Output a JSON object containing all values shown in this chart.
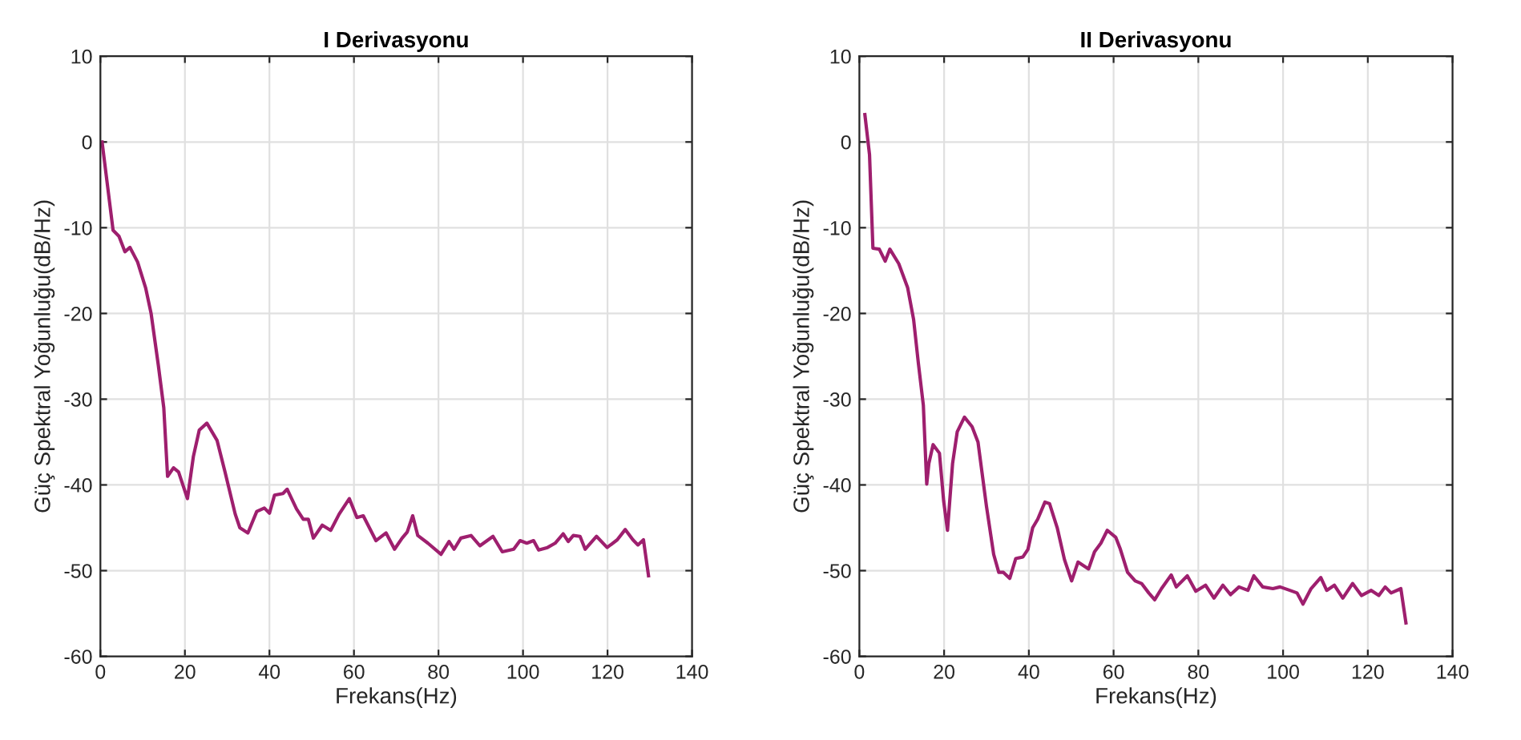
{
  "chart_data": [
    {
      "type": "line",
      "title": "I Derivasyonu",
      "xlabel": "Frekans(Hz)",
      "ylabel": "Güç Spektral Yoğunluğu(dB/Hz)",
      "xlim": [
        0,
        140
      ],
      "ylim": [
        -60,
        10
      ],
      "xticks": [
        0,
        20,
        40,
        60,
        80,
        100,
        120,
        140
      ],
      "yticks": [
        -60,
        -50,
        -40,
        -30,
        -20,
        -10,
        0,
        10
      ],
      "grid": true,
      "series": [
        {
          "color": "#9e1f6e",
          "x": [
            0.4,
            3,
            4.4,
            5.8,
            7.0,
            8.8,
            10.7,
            12,
            13.7,
            15,
            15.9,
            17.3,
            18.5,
            20.6,
            22,
            23.4,
            25.2,
            27.6,
            29.5,
            31.9,
            33,
            34.9,
            37,
            38.8,
            40,
            41.2,
            43.2,
            44.2,
            46.4,
            48,
            49.2,
            50.4,
            52.5,
            54.5,
            56.5,
            58.9,
            60.7,
            62.2,
            65.2,
            67.6,
            69.6,
            71.4,
            72.6,
            73.9,
            75.1,
            77.5,
            80.6,
            82.5,
            83.7,
            85.3,
            87.7,
            89.8,
            92.9,
            95.1,
            97.8,
            99.3,
            100.9,
            102.5,
            103.7,
            105.8,
            107.6,
            109.5,
            110.7,
            111.9,
            113.5,
            114.7,
            117.4,
            119.9,
            122.3,
            124.2,
            126,
            127.2,
            128.5,
            129.7
          ],
          "values": [
            0,
            -10.3,
            -11,
            -12.8,
            -12.3,
            -14,
            -17,
            -20,
            -26,
            -31,
            -39,
            -38,
            -38.5,
            -41.6,
            -36.7,
            -33.6,
            -32.8,
            -34.8,
            -38.5,
            -43.4,
            -45,
            -45.6,
            -43.1,
            -42.7,
            -43.3,
            -41.2,
            -41,
            -40.5,
            -42.8,
            -44,
            -44,
            -46.2,
            -44.7,
            -45.3,
            -43.4,
            -41.6,
            -43.8,
            -43.6,
            -46.5,
            -45.6,
            -47.5,
            -46.2,
            -45.5,
            -43.6,
            -45.9,
            -46.8,
            -48.1,
            -46.6,
            -47.5,
            -46.2,
            -45.9,
            -47.1,
            -46,
            -47.8,
            -47.5,
            -46.5,
            -46.8,
            -46.5,
            -47.6,
            -47.3,
            -46.8,
            -45.7,
            -46.6,
            -45.9,
            -46,
            -47.5,
            -46,
            -47.3,
            -46.4,
            -45.2,
            -46.4,
            -47,
            -46.4,
            -50.6
          ]
        }
      ]
    },
    {
      "type": "line",
      "title": "II Derivasyonu",
      "xlabel": "Frekans(Hz)",
      "ylabel": "Güç Spektral Yoğunluğu(dB/Hz)",
      "xlim": [
        0,
        140
      ],
      "ylim": [
        -60,
        10
      ],
      "xticks": [
        0,
        20,
        40,
        60,
        80,
        100,
        120,
        140
      ],
      "yticks": [
        -60,
        -50,
        -40,
        -30,
        -20,
        -10,
        0,
        10
      ],
      "grid": true,
      "series": [
        {
          "color": "#9e1f6e",
          "x": [
            1.3,
            2.4,
            3.2,
            4.7,
            6.1,
            7.2,
            9.3,
            11.4,
            12.8,
            13.9,
            15.1,
            15.9,
            16.4,
            17.4,
            18.9,
            19.9,
            20.8,
            22,
            23.1,
            24.8,
            26.6,
            28,
            30,
            31.7,
            32.9,
            34,
            35.5,
            36.9,
            38.6,
            39.8,
            40.9,
            42.1,
            43.8,
            44.9,
            46.7,
            48.4,
            50.1,
            51.6,
            54.1,
            55.5,
            57,
            58.5,
            60.5,
            61.6,
            63.3,
            65.1,
            66.6,
            68.3,
            69.7,
            71.3,
            73.6,
            74.8,
            77.4,
            79.4,
            81.7,
            83.7,
            85.8,
            87.6,
            89.6,
            91.7,
            93.1,
            95.2,
            97.6,
            99.3,
            101.6,
            103.3,
            104.7,
            106.6,
            108.9,
            110.3,
            112.1,
            114.1,
            116.4,
            118.5,
            120.8,
            122.6,
            124.1,
            125.5,
            127.8,
            129
          ],
          "values": [
            3.2,
            -1.5,
            -12.4,
            -12.5,
            -13.9,
            -12.5,
            -14.2,
            -17,
            -20.7,
            -25.7,
            -30.7,
            -39.9,
            -37.5,
            -35.3,
            -36.3,
            -41.9,
            -45.3,
            -37.5,
            -33.8,
            -32.1,
            -33.2,
            -35,
            -42.5,
            -48.1,
            -50.2,
            -50.2,
            -50.9,
            -48.6,
            -48.4,
            -47.5,
            -45,
            -44,
            -42,
            -42.2,
            -45,
            -48.7,
            -51.2,
            -49,
            -49.8,
            -47.8,
            -46.8,
            -45.3,
            -46.1,
            -47.5,
            -50.2,
            -51.2,
            -51.5,
            -52.6,
            -53.4,
            -52.1,
            -50.5,
            -51.9,
            -50.6,
            -52.4,
            -51.7,
            -53.2,
            -51.7,
            -52.8,
            -51.9,
            -52.3,
            -50.6,
            -51.9,
            -52.1,
            -51.9,
            -52.3,
            -52.6,
            -53.9,
            -52.1,
            -50.8,
            -52.3,
            -51.7,
            -53.2,
            -51.5,
            -52.9,
            -52.3,
            -52.9,
            -51.9,
            -52.6,
            -52.1,
            -56.1
          ]
        }
      ]
    }
  ]
}
